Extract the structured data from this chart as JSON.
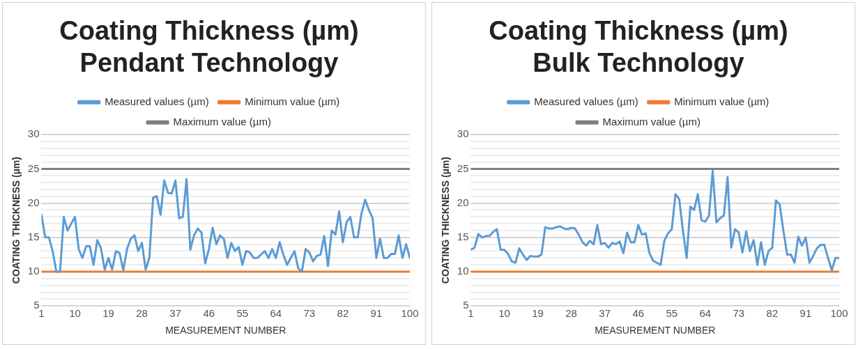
{
  "chart_data": [
    {
      "type": "line",
      "title": "Coating Thickness (µm)\nPendant Technology",
      "xlabel": "MEASUREMENT NUMBER",
      "ylabel": "COATING THICKNESS (µm)",
      "x": [
        1,
        2,
        3,
        4,
        5,
        6,
        7,
        8,
        9,
        10,
        11,
        12,
        13,
        14,
        15,
        16,
        17,
        18,
        19,
        20,
        21,
        22,
        23,
        24,
        25,
        26,
        27,
        28,
        29,
        30,
        31,
        32,
        33,
        34,
        35,
        36,
        37,
        38,
        39,
        40,
        41,
        42,
        43,
        44,
        45,
        46,
        47,
        48,
        49,
        50,
        51,
        52,
        53,
        54,
        55,
        56,
        57,
        58,
        59,
        60,
        61,
        62,
        63,
        64,
        65,
        66,
        67,
        68,
        69,
        70,
        71,
        72,
        73,
        74,
        75,
        76,
        77,
        78,
        79,
        80,
        81,
        82,
        83,
        84,
        85,
        86,
        87,
        88,
        89,
        90,
        91,
        92,
        93,
        94,
        95,
        96,
        97,
        98,
        99,
        100
      ],
      "series": [
        {
          "name": "Measured values (µm)",
          "color": "#5b9bd5",
          "values": [
            18.3,
            15,
            15,
            13,
            10,
            10,
            18,
            16,
            17,
            18,
            13.3,
            12,
            13.7,
            13.7,
            11,
            14.6,
            13.4,
            10.3,
            12,
            10.3,
            13,
            12.7,
            10.2,
            13.3,
            14.8,
            15.3,
            13,
            14.2,
            10.3,
            12,
            20.8,
            21,
            18.3,
            23.3,
            21.5,
            21.4,
            23.3,
            17.8,
            18,
            23.5,
            13.2,
            15.3,
            16.3,
            15.7,
            11.2,
            13.3,
            16.4,
            14,
            15.3,
            14.8,
            12,
            14.2,
            13,
            13.6,
            11,
            13,
            12.8,
            12,
            12,
            12.5,
            13,
            12,
            13.3,
            12,
            14.3,
            12.5,
            11,
            12,
            13,
            10.5,
            10,
            13.3,
            12.8,
            11.5,
            12.3,
            12.5,
            15.2,
            10.8,
            16,
            15.4,
            18.8,
            14.3,
            17.2,
            18,
            15,
            15,
            18.5,
            20.5,
            19,
            17.8,
            12,
            14.8,
            12,
            12,
            12.6,
            12.6,
            15.3,
            12,
            14,
            12
          ]
        },
        {
          "name": "Minimum value (µm)",
          "color": "#ed7d31",
          "values": [
            10,
            10,
            10,
            10,
            10,
            10,
            10,
            10,
            10,
            10,
            10,
            10,
            10,
            10,
            10,
            10,
            10,
            10,
            10,
            10,
            10,
            10,
            10,
            10,
            10,
            10,
            10,
            10,
            10,
            10,
            10,
            10,
            10,
            10,
            10,
            10,
            10,
            10,
            10,
            10,
            10,
            10,
            10,
            10,
            10,
            10,
            10,
            10,
            10,
            10,
            10,
            10,
            10,
            10,
            10,
            10,
            10,
            10,
            10,
            10,
            10,
            10,
            10,
            10,
            10,
            10,
            10,
            10,
            10,
            10,
            10,
            10,
            10,
            10,
            10,
            10,
            10,
            10,
            10,
            10,
            10,
            10,
            10,
            10,
            10,
            10,
            10,
            10,
            10,
            10,
            10,
            10,
            10,
            10,
            10,
            10,
            10,
            10,
            10,
            10
          ]
        },
        {
          "name": "Maximum value (µm)",
          "color": "#7f7f7f",
          "values": [
            25,
            25,
            25,
            25,
            25,
            25,
            25,
            25,
            25,
            25,
            25,
            25,
            25,
            25,
            25,
            25,
            25,
            25,
            25,
            25,
            25,
            25,
            25,
            25,
            25,
            25,
            25,
            25,
            25,
            25,
            25,
            25,
            25,
            25,
            25,
            25,
            25,
            25,
            25,
            25,
            25,
            25,
            25,
            25,
            25,
            25,
            25,
            25,
            25,
            25,
            25,
            25,
            25,
            25,
            25,
            25,
            25,
            25,
            25,
            25,
            25,
            25,
            25,
            25,
            25,
            25,
            25,
            25,
            25,
            25,
            25,
            25,
            25,
            25,
            25,
            25,
            25,
            25,
            25,
            25,
            25,
            25,
            25,
            25,
            25,
            25,
            25,
            25,
            25,
            25,
            25,
            25,
            25,
            25,
            25,
            25,
            25,
            25,
            25,
            25
          ]
        }
      ],
      "xlim": [
        1,
        100
      ],
      "xticks": [
        1,
        10,
        19,
        28,
        37,
        46,
        55,
        64,
        73,
        82,
        91,
        100
      ],
      "ylim": [
        5,
        30
      ],
      "yticks": [
        5,
        {
          "value": 6,
          "label": null
        },
        {
          "value": 7,
          "label": null
        },
        {
          "value": 8,
          "label": null
        },
        {
          "value": 9,
          "label": null
        },
        10,
        {
          "value": 11,
          "label": null
        },
        {
          "value": 12,
          "label": null
        },
        {
          "value": 13,
          "label": null
        },
        {
          "value": 14,
          "label": null
        },
        15,
        {
          "value": 16,
          "label": null
        },
        {
          "value": 17,
          "label": null
        },
        {
          "value": 18,
          "label": null
        },
        {
          "value": 19,
          "label": null
        },
        20,
        {
          "value": 21,
          "label": null
        },
        {
          "value": 22,
          "label": null
        },
        {
          "value": 23,
          "label": null
        },
        {
          "value": 24,
          "label": null
        },
        25,
        {
          "value": 26,
          "label": null
        },
        {
          "value": 27,
          "label": null
        },
        {
          "value": 28,
          "label": null
        },
        {
          "value": 29,
          "label": null
        },
        30
      ],
      "grid": "y",
      "legend": "top",
      "marker": "none",
      "line_style": "solid"
    },
    {
      "type": "line",
      "title": "Coating Thickness (µm)\nBulk Technology",
      "xlabel": "MEASUREMENT NUMBER",
      "ylabel": "COATING THICKNESS (µm)",
      "x": [
        1,
        2,
        3,
        4,
        5,
        6,
        7,
        8,
        9,
        10,
        11,
        12,
        13,
        14,
        15,
        16,
        17,
        18,
        19,
        20,
        21,
        22,
        23,
        24,
        25,
        26,
        27,
        28,
        29,
        30,
        31,
        32,
        33,
        34,
        35,
        36,
        37,
        38,
        39,
        40,
        41,
        42,
        43,
        44,
        45,
        46,
        47,
        48,
        49,
        50,
        51,
        52,
        53,
        54,
        55,
        56,
        57,
        58,
        59,
        60,
        61,
        62,
        63,
        64,
        65,
        66,
        67,
        68,
        69,
        70,
        71,
        72,
        73,
        74,
        75,
        76,
        77,
        78,
        79,
        80,
        81,
        82,
        83,
        84,
        85,
        86,
        87,
        88,
        89,
        90,
        91,
        92,
        93,
        94,
        95,
        96,
        97,
        98,
        99,
        100
      ],
      "series": [
        {
          "name": "Measured values (µm)",
          "color": "#5b9bd5",
          "values": [
            13.2,
            13.5,
            15.5,
            15,
            15.2,
            15.2,
            15.8,
            16.2,
            13.2,
            13.2,
            12.6,
            11.5,
            11.3,
            13.4,
            12.5,
            11.7,
            12.3,
            12.2,
            12.2,
            12.5,
            16.5,
            16.3,
            16.3,
            16.5,
            16.6,
            16.3,
            16.2,
            16.4,
            16.3,
            15.4,
            14.3,
            13.8,
            14.5,
            14,
            16.8,
            14,
            14.2,
            13.5,
            14.2,
            14,
            14.4,
            12.7,
            15.7,
            14.3,
            14.3,
            16.8,
            15.4,
            15.6,
            12.7,
            11.6,
            11.3,
            11,
            14.5,
            15.6,
            16.2,
            21.3,
            20.6,
            16,
            12,
            19.5,
            19,
            21.3,
            17.5,
            17.3,
            18.2,
            24.7,
            17.2,
            17.8,
            18.2,
            23.8,
            13.5,
            16.2,
            15.7,
            12.8,
            15.9,
            13,
            14.6,
            11,
            14.3,
            11,
            13,
            13.5,
            20.4,
            19.8,
            16,
            12.5,
            12.5,
            11.3,
            15.1,
            13.8,
            15,
            11.3,
            12.3,
            13.4,
            13.9,
            13.9,
            12,
            10.2,
            12,
            12
          ]
        },
        {
          "name": "Minimum value (µm)",
          "color": "#ed7d31",
          "values": [
            10,
            10,
            10,
            10,
            10,
            10,
            10,
            10,
            10,
            10,
            10,
            10,
            10,
            10,
            10,
            10,
            10,
            10,
            10,
            10,
            10,
            10,
            10,
            10,
            10,
            10,
            10,
            10,
            10,
            10,
            10,
            10,
            10,
            10,
            10,
            10,
            10,
            10,
            10,
            10,
            10,
            10,
            10,
            10,
            10,
            10,
            10,
            10,
            10,
            10,
            10,
            10,
            10,
            10,
            10,
            10,
            10,
            10,
            10,
            10,
            10,
            10,
            10,
            10,
            10,
            10,
            10,
            10,
            10,
            10,
            10,
            10,
            10,
            10,
            10,
            10,
            10,
            10,
            10,
            10,
            10,
            10,
            10,
            10,
            10,
            10,
            10,
            10,
            10,
            10,
            10,
            10,
            10,
            10,
            10,
            10,
            10,
            10,
            10,
            10
          ]
        },
        {
          "name": "Maximum value (µm)",
          "color": "#7f7f7f",
          "values": [
            25,
            25,
            25,
            25,
            25,
            25,
            25,
            25,
            25,
            25,
            25,
            25,
            25,
            25,
            25,
            25,
            25,
            25,
            25,
            25,
            25,
            25,
            25,
            25,
            25,
            25,
            25,
            25,
            25,
            25,
            25,
            25,
            25,
            25,
            25,
            25,
            25,
            25,
            25,
            25,
            25,
            25,
            25,
            25,
            25,
            25,
            25,
            25,
            25,
            25,
            25,
            25,
            25,
            25,
            25,
            25,
            25,
            25,
            25,
            25,
            25,
            25,
            25,
            25,
            25,
            25,
            25,
            25,
            25,
            25,
            25,
            25,
            25,
            25,
            25,
            25,
            25,
            25,
            25,
            25,
            25,
            25,
            25,
            25,
            25,
            25,
            25,
            25,
            25,
            25,
            25,
            25,
            25,
            25,
            25,
            25,
            25,
            25,
            25,
            25
          ]
        }
      ],
      "xlim": [
        1,
        100
      ],
      "xticks": [
        1,
        10,
        19,
        28,
        37,
        46,
        55,
        64,
        73,
        82,
        91,
        100
      ],
      "ylim": [
        5,
        30
      ],
      "yticks": [
        5,
        {
          "value": 6,
          "label": null
        },
        {
          "value": 7,
          "label": null
        },
        {
          "value": 8,
          "label": null
        },
        {
          "value": 9,
          "label": null
        },
        10,
        {
          "value": 11,
          "label": null
        },
        {
          "value": 12,
          "label": null
        },
        {
          "value": 13,
          "label": null
        },
        {
          "value": 14,
          "label": null
        },
        15,
        {
          "value": 16,
          "label": null
        },
        {
          "value": 17,
          "label": null
        },
        {
          "value": 18,
          "label": null
        },
        {
          "value": 19,
          "label": null
        },
        20,
        {
          "value": 21,
          "label": null
        },
        {
          "value": 22,
          "label": null
        },
        {
          "value": 23,
          "label": null
        },
        {
          "value": 24,
          "label": null
        },
        25,
        {
          "value": 26,
          "label": null
        },
        {
          "value": 27,
          "label": null
        },
        {
          "value": 28,
          "label": null
        },
        {
          "value": 29,
          "label": null
        },
        30
      ],
      "grid": "y",
      "legend": "top",
      "marker": "none",
      "line_style": "solid"
    }
  ]
}
